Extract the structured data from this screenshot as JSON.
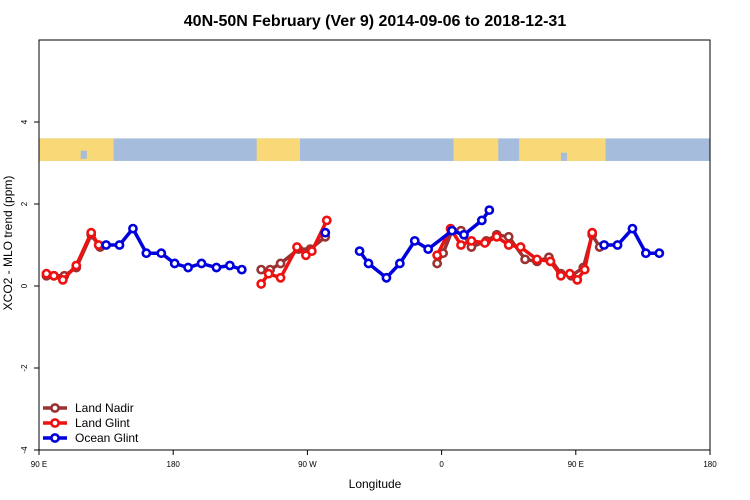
{
  "chart_data": {
    "type": "line",
    "title": "40N-50N February (Ver 9)   2014-09-06 to 2018-12-31",
    "xlabel": "Longitude",
    "ylabel": "XCO2 - MLO trend (ppm)",
    "xlim": [
      90,
      540
    ],
    "ylim": [
      -4,
      6
    ],
    "x_ticks": [
      {
        "value": 90,
        "label": "90 E"
      },
      {
        "value": 180,
        "label": "180"
      },
      {
        "value": 270,
        "label": "90 W"
      },
      {
        "value": 360,
        "label": "0"
      },
      {
        "value": 450,
        "label": "90 E"
      },
      {
        "value": 540,
        "label": "180"
      }
    ],
    "y_ticks": [
      {
        "value": -4,
        "label": "-4"
      },
      {
        "value": -2,
        "label": "-2"
      },
      {
        "value": 0,
        "label": "0"
      },
      {
        "value": 2,
        "label": "2"
      },
      {
        "value": 4,
        "label": "4"
      }
    ],
    "map_strip": {
      "y_range": [
        3.05,
        3.6
      ],
      "ocean_color": "#a5bcdc",
      "land_color": "#f9d977"
    },
    "legend_position": "bottom-left",
    "series": [
      {
        "name": "Land Nadir",
        "color": "#993333",
        "segments": [
          [
            [
              95,
              0.25
            ],
            [
              100,
              0.25
            ],
            [
              107,
              0.25
            ],
            [
              115,
              0.45
            ],
            [
              125,
              1.25
            ],
            [
              131,
              0.95
            ]
          ],
          [
            [
              239,
              0.4
            ],
            [
              245,
              0.4
            ],
            [
              252,
              0.55
            ],
            [
              264,
              0.9
            ],
            [
              272,
              0.9
            ],
            [
              282,
              1.2
            ]
          ],
          [
            [
              357,
              0.55
            ],
            [
              361,
              0.8
            ],
            [
              367,
              1.35
            ],
            [
              373,
              1.35
            ],
            [
              380,
              0.95
            ],
            [
              390,
              1.1
            ],
            [
              397,
              1.25
            ],
            [
              405,
              1.2
            ],
            [
              416,
              0.65
            ],
            [
              424,
              0.6
            ],
            [
              432,
              0.7
            ],
            [
              440,
              0.3
            ],
            [
              447,
              0.25
            ],
            [
              455,
              0.45
            ],
            [
              461,
              1.25
            ],
            [
              466,
              0.95
            ]
          ]
        ]
      },
      {
        "name": "Land Glint",
        "color": "#ee1111",
        "segments": [
          [
            [
              95,
              0.3
            ],
            [
              100,
              0.25
            ],
            [
              106,
              0.15
            ],
            [
              115,
              0.5
            ],
            [
              125,
              1.3
            ],
            [
              130,
              1.0
            ]
          ],
          [
            [
              239,
              0.05
            ],
            [
              244,
              0.3
            ],
            [
              252,
              0.2
            ],
            [
              263,
              0.95
            ],
            [
              269,
              0.75
            ],
            [
              273,
              0.85
            ],
            [
              283,
              1.6
            ]
          ],
          [
            [
              357,
              0.75
            ],
            [
              366,
              1.4
            ],
            [
              373,
              1.0
            ],
            [
              380,
              1.1
            ],
            [
              389,
              1.05
            ],
            [
              397,
              1.2
            ],
            [
              405,
              1.0
            ],
            [
              413,
              0.95
            ],
            [
              424,
              0.65
            ],
            [
              433,
              0.6
            ],
            [
              440,
              0.25
            ],
            [
              446,
              0.3
            ],
            [
              451,
              0.15
            ],
            [
              456,
              0.4
            ],
            [
              461,
              1.3
            ]
          ]
        ]
      },
      {
        "name": "Ocean Glint",
        "color": "#0000dd",
        "segments": [
          [
            [
              135,
              1.0
            ],
            [
              144,
              1.0
            ],
            [
              153,
              1.4
            ],
            [
              162,
              0.8
            ],
            [
              172,
              0.8
            ],
            [
              181,
              0.55
            ],
            [
              190,
              0.45
            ],
            [
              199,
              0.55
            ],
            [
              209,
              0.45
            ],
            [
              218,
              0.5
            ],
            [
              226,
              0.4
            ]
          ],
          [
            [
              282,
              1.3
            ]
          ],
          [
            [
              305,
              0.85
            ],
            [
              311,
              0.55
            ],
            [
              323,
              0.2
            ],
            [
              332,
              0.55
            ],
            [
              342,
              1.1
            ],
            [
              351,
              0.9
            ],
            [
              367,
              1.35
            ],
            [
              375,
              1.25
            ],
            [
              387,
              1.6
            ],
            [
              392,
              1.85
            ]
          ],
          [
            [
              469,
              1.0
            ],
            [
              478,
              1.0
            ],
            [
              488,
              1.4
            ],
            [
              497,
              0.8
            ],
            [
              506,
              0.8
            ]
          ]
        ]
      }
    ]
  }
}
